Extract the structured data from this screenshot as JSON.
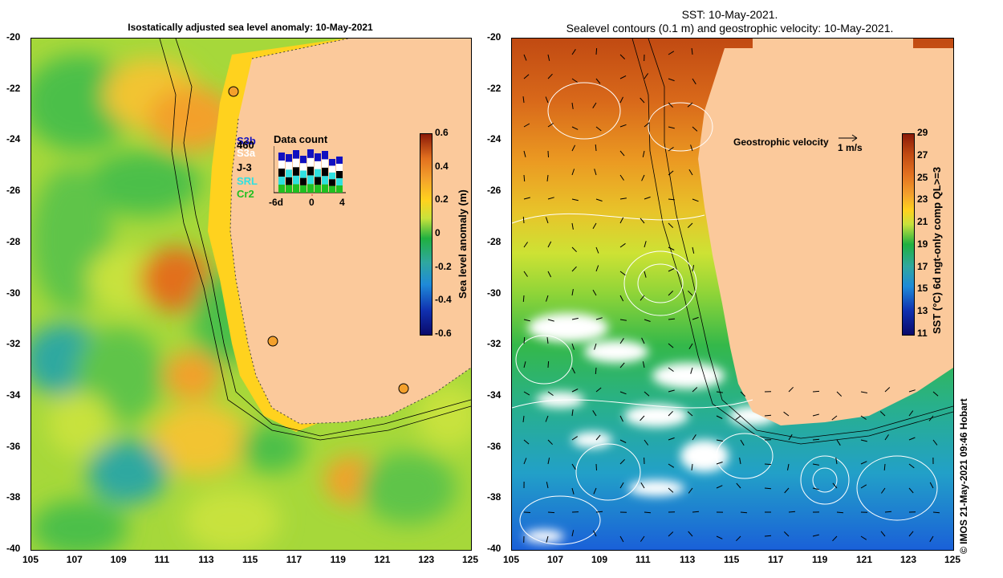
{
  "left_map": {
    "title": "Isostatically adjusted sea level anomaly: 10-May-2021",
    "y_ticks": [
      "-20",
      "-22",
      "-24",
      "-26",
      "-28",
      "-30",
      "-32",
      "-34",
      "-36",
      "-38",
      "-40"
    ],
    "x_ticks": [
      "105",
      "107",
      "109",
      "111",
      "113",
      "115",
      "117",
      "119",
      "121",
      "123",
      "125"
    ],
    "colorbar": {
      "label": "Sea level anomaly (m)",
      "ticks": [
        "0.6",
        "0.4",
        "0.2",
        "0",
        "-0.2",
        "-0.4",
        "-0.6"
      ]
    },
    "legend": {
      "satellites": [
        "S3b",
        "460",
        "S3a",
        "J-3",
        "SRL",
        "Cr2"
      ],
      "satellite_colors": [
        "#1010c0",
        "#000000",
        "#ffffff",
        "#000000",
        "#30e0e0",
        "#20c020"
      ],
      "data_count_label": "Data count",
      "axis_ticks": [
        "-6d",
        "0",
        "4"
      ]
    }
  },
  "right_map": {
    "title_line1": "SST: 10-May-2021.",
    "title_line2": "Sealevel contours (0.1 m) and geostrophic velocity: 10-May-2021.",
    "y_ticks": [
      "-20",
      "-22",
      "-24",
      "-26",
      "-28",
      "-30",
      "-32",
      "-34",
      "-36",
      "-38",
      "-40"
    ],
    "x_ticks": [
      "105",
      "107",
      "109",
      "111",
      "113",
      "115",
      "117",
      "119",
      "121",
      "123",
      "125"
    ],
    "colorbar": {
      "label": "SST (°C) 6d ngt-only comp QL>=3",
      "ticks": [
        "29",
        "27",
        "25",
        "23",
        "21",
        "19",
        "17",
        "15",
        "13",
        "11"
      ]
    },
    "velocity_legend": {
      "label": "Geostrophic velocity",
      "scale": "1 m/s"
    }
  },
  "credit": "© IMOS 21-May-2021 09:46 Hobart",
  "colors": {
    "land": "#fbc99b",
    "frame": "#000000"
  }
}
